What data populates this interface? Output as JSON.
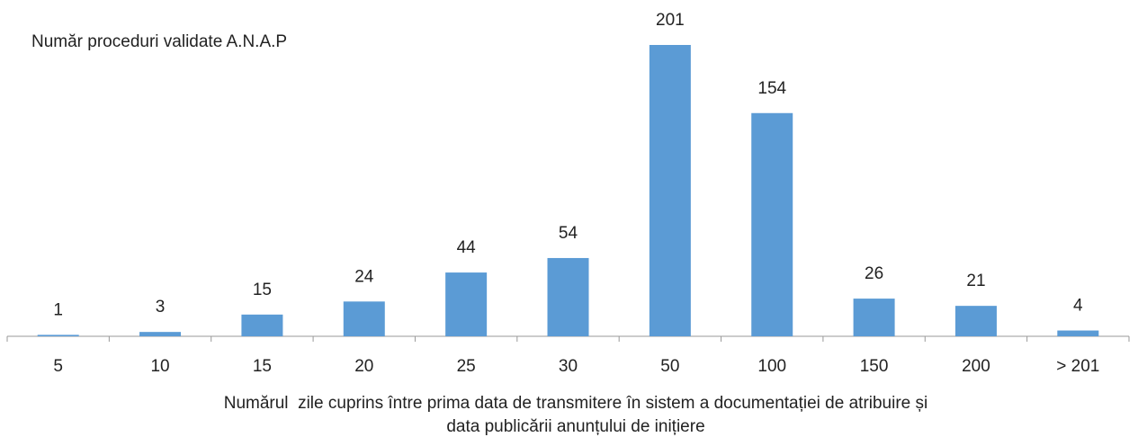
{
  "chart_data": {
    "type": "bar",
    "title": "Număr proceduri validate A.N.A.P",
    "xlabel": [
      "Numărul  zile cuprins între prima data de transmitere în sistem a documentației de atribuire și",
      "data publicării anunțului de inițiere"
    ],
    "categories": [
      "5",
      "10",
      "15",
      "20",
      "25",
      "30",
      "50",
      "100",
      "150",
      "200",
      "> 201"
    ],
    "values": [
      1,
      3,
      15,
      24,
      44,
      54,
      201,
      154,
      26,
      21,
      4
    ],
    "color": "#5b9bd5"
  }
}
